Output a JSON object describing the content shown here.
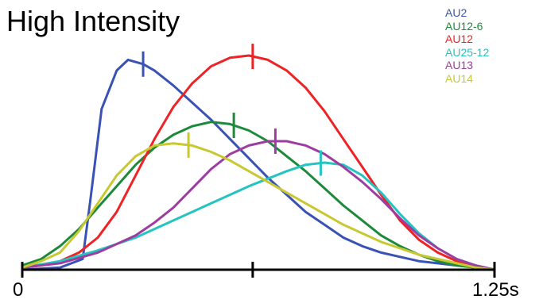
{
  "chart_data": {
    "type": "line",
    "title": "High Intensity",
    "xlabel": "",
    "ylabel": "",
    "xlim": [
      0,
      1.25
    ],
    "ylim": [
      0,
      1
    ],
    "x_tick_labels": [
      "0",
      "",
      "1.25s"
    ],
    "x_ticks": [
      0,
      0.61,
      1.25
    ],
    "legend_position": "top-right",
    "series": [
      {
        "name": "AU2",
        "color": "#3a52b4",
        "x": [
          0,
          0.1,
          0.16,
          0.18,
          0.21,
          0.25,
          0.28,
          0.32,
          0.35,
          0.4,
          0.45,
          0.5,
          0.55,
          0.6,
          0.65,
          0.7,
          0.75,
          0.8,
          0.85,
          0.9,
          0.95,
          1.0,
          1.05,
          1.1,
          1.15,
          1.2,
          1.25
        ],
        "y": [
          0,
          0.01,
          0.05,
          0.32,
          0.75,
          0.93,
          0.98,
          0.96,
          0.93,
          0.86,
          0.78,
          0.7,
          0.61,
          0.52,
          0.43,
          0.35,
          0.27,
          0.21,
          0.15,
          0.11,
          0.08,
          0.06,
          0.04,
          0.03,
          0.02,
          0.01,
          0
        ]
      },
      {
        "name": "AU12-6",
        "color": "#1d8a3b",
        "x": [
          0,
          0.05,
          0.1,
          0.15,
          0.2,
          0.25,
          0.3,
          0.35,
          0.4,
          0.45,
          0.5,
          0.55,
          0.6,
          0.65,
          0.7,
          0.75,
          0.8,
          0.85,
          0.9,
          0.95,
          1.0,
          1.05,
          1.1,
          1.15,
          1.2,
          1.25
        ],
        "y": [
          0.02,
          0.05,
          0.11,
          0.19,
          0.29,
          0.39,
          0.49,
          0.57,
          0.63,
          0.67,
          0.69,
          0.68,
          0.65,
          0.6,
          0.53,
          0.46,
          0.38,
          0.3,
          0.23,
          0.16,
          0.11,
          0.07,
          0.04,
          0.02,
          0.01,
          0
        ]
      },
      {
        "name": "AU12",
        "color": "#ee2326",
        "x": [
          0,
          0.05,
          0.1,
          0.15,
          0.2,
          0.25,
          0.3,
          0.35,
          0.4,
          0.45,
          0.5,
          0.55,
          0.6,
          0.65,
          0.7,
          0.75,
          0.8,
          0.85,
          0.9,
          0.95,
          1.0,
          1.05,
          1.1,
          1.15,
          1.2,
          1.25
        ],
        "y": [
          0.01,
          0.02,
          0.04,
          0.08,
          0.15,
          0.27,
          0.44,
          0.61,
          0.76,
          0.87,
          0.95,
          0.99,
          1.0,
          0.98,
          0.93,
          0.85,
          0.74,
          0.61,
          0.48,
          0.35,
          0.23,
          0.14,
          0.08,
          0.04,
          0.02,
          0
        ]
      },
      {
        "name": "AU25-12",
        "color": "#25c3c1",
        "x": [
          0,
          0.1,
          0.2,
          0.3,
          0.4,
          0.5,
          0.6,
          0.7,
          0.75,
          0.8,
          0.85,
          0.9,
          0.95,
          1.0,
          1.05,
          1.1,
          1.15,
          1.2,
          1.25
        ],
        "y": [
          0.01,
          0.04,
          0.09,
          0.15,
          0.23,
          0.31,
          0.39,
          0.46,
          0.49,
          0.5,
          0.49,
          0.44,
          0.36,
          0.26,
          0.17,
          0.1,
          0.05,
          0.02,
          0
        ]
      },
      {
        "name": "AU13",
        "color": "#9e3da0",
        "x": [
          0,
          0.1,
          0.2,
          0.3,
          0.35,
          0.4,
          0.45,
          0.5,
          0.55,
          0.6,
          0.65,
          0.7,
          0.75,
          0.8,
          0.85,
          0.9,
          0.95,
          1.0,
          1.05,
          1.1,
          1.15,
          1.2,
          1.25
        ],
        "y": [
          0.01,
          0.03,
          0.08,
          0.16,
          0.22,
          0.29,
          0.38,
          0.47,
          0.54,
          0.58,
          0.6,
          0.6,
          0.58,
          0.54,
          0.48,
          0.41,
          0.33,
          0.24,
          0.16,
          0.1,
          0.05,
          0.02,
          0
        ]
      },
      {
        "name": "AU14",
        "color": "#c8c833",
        "x": [
          0,
          0.05,
          0.1,
          0.15,
          0.2,
          0.25,
          0.3,
          0.35,
          0.4,
          0.45,
          0.5,
          0.55,
          0.6,
          0.65,
          0.7,
          0.75,
          0.8,
          0.85,
          0.9,
          0.95,
          1.0,
          1.05,
          1.1,
          1.15,
          1.2,
          1.25
        ],
        "y": [
          0.01,
          0.04,
          0.08,
          0.18,
          0.31,
          0.44,
          0.53,
          0.58,
          0.59,
          0.58,
          0.55,
          0.51,
          0.46,
          0.41,
          0.36,
          0.31,
          0.26,
          0.21,
          0.17,
          0.13,
          0.1,
          0.07,
          0.05,
          0.03,
          0.01,
          0
        ]
      }
    ],
    "peak_markers": [
      {
        "series": "AU2",
        "x": 0.32
      },
      {
        "series": "AU12-6",
        "x": 0.56
      },
      {
        "series": "AU12",
        "x": 0.61
      },
      {
        "series": "AU25-12",
        "x": 0.79
      },
      {
        "series": "AU13",
        "x": 0.67
      },
      {
        "series": "AU14",
        "x": 0.44
      }
    ]
  }
}
